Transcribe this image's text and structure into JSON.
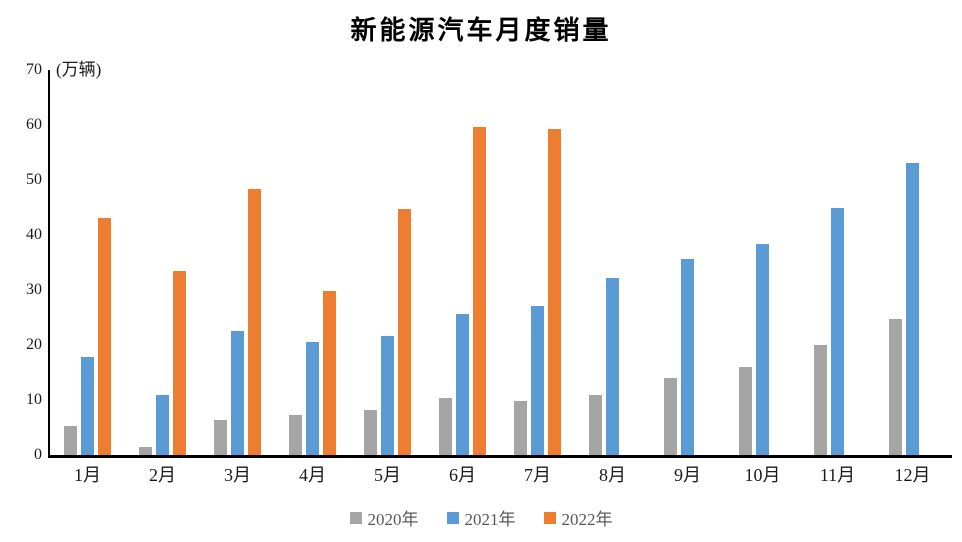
{
  "chart_data": {
    "type": "bar",
    "title": "新能源汽车月度销量",
    "unit_label": "(万辆)",
    "xlabel": "",
    "ylabel": "万辆",
    "ylim": [
      0,
      70
    ],
    "ytick_step": 10,
    "yticks": [
      0,
      10,
      20,
      30,
      40,
      50,
      60,
      70
    ],
    "grid": false,
    "legend_position": "bottom",
    "axis_color": "#000000",
    "categories": [
      "1月",
      "2月",
      "3月",
      "4月",
      "5月",
      "6月",
      "7月",
      "8月",
      "9月",
      "10月",
      "11月",
      "12月"
    ],
    "series": [
      {
        "name": "2020年",
        "color": "#A5A5A5",
        "values": [
          5.3,
          1.5,
          6.4,
          7.2,
          8.2,
          10.4,
          9.8,
          10.9,
          14.0,
          16.0,
          20.0,
          24.8
        ]
      },
      {
        "name": "2021年",
        "color": "#5B9BD5",
        "values": [
          17.9,
          11.0,
          22.6,
          20.6,
          21.7,
          25.6,
          27.1,
          32.1,
          35.7,
          38.3,
          45.0,
          53.1
        ]
      },
      {
        "name": "2022年",
        "color": "#ED7D31",
        "values": [
          43.1,
          33.4,
          48.4,
          29.9,
          44.7,
          59.6,
          59.3,
          null,
          null,
          null,
          null,
          null
        ]
      }
    ]
  }
}
